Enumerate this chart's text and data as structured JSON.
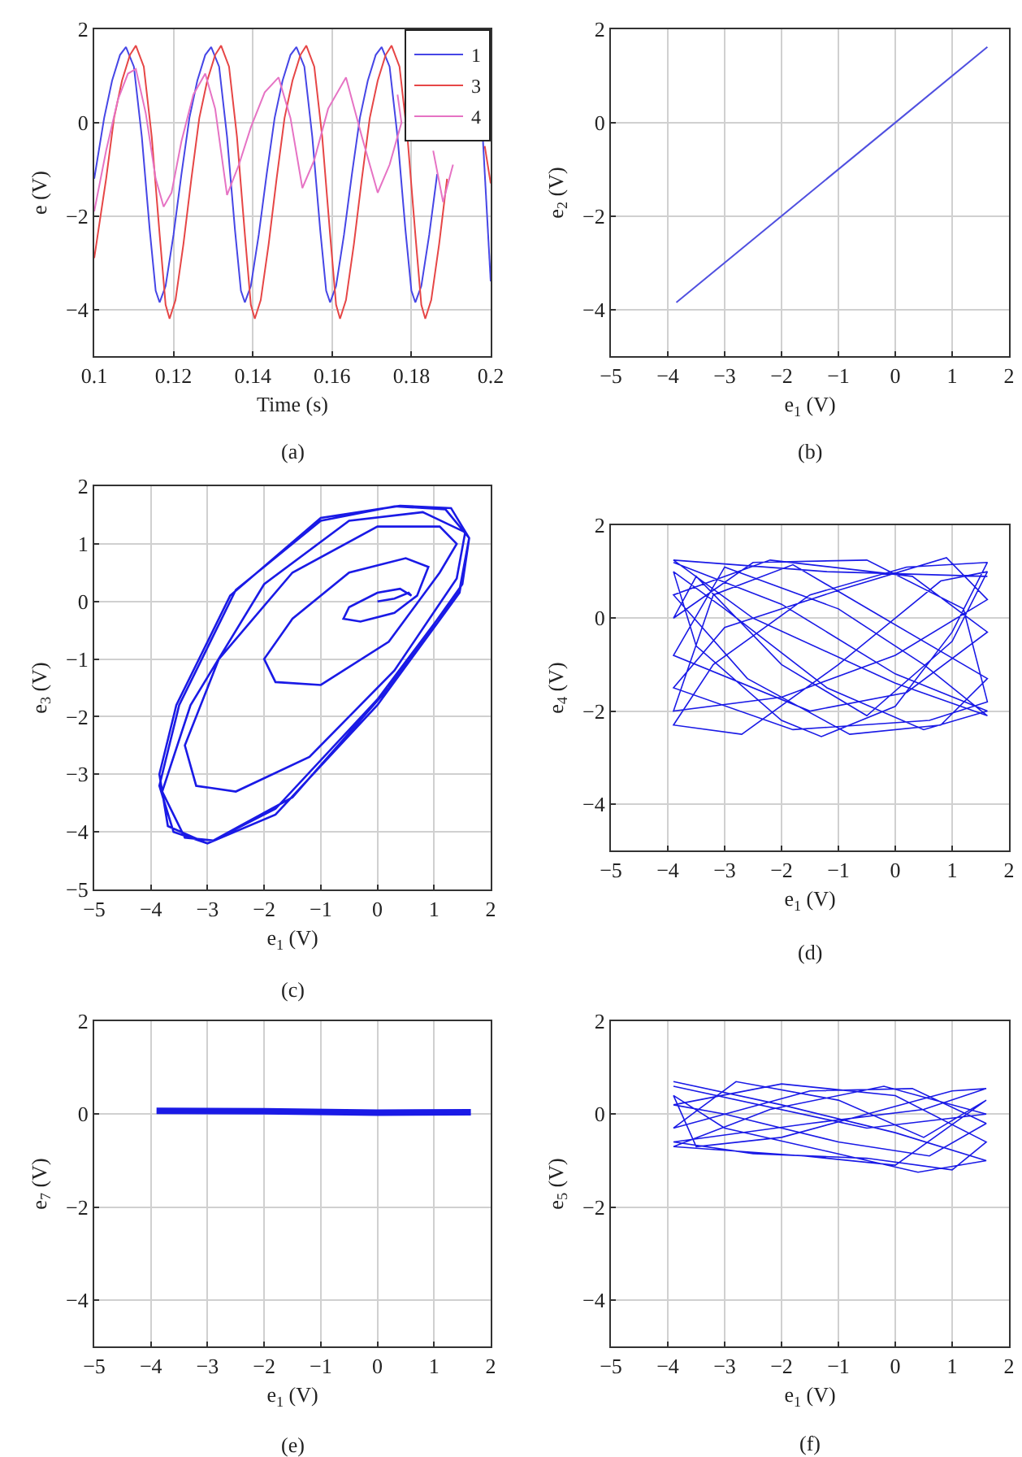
{
  "chart_data": [
    {
      "type": "line",
      "xlabel": "Time (s)",
      "ylabel": "e (V)",
      "xlim": [
        0.1,
        0.2
      ],
      "ylim": [
        -5,
        2
      ],
      "xticks": [
        0.1,
        0.12,
        0.14,
        0.16,
        0.18,
        0.2
      ],
      "yticks": [
        -4,
        -2,
        0,
        2
      ],
      "grid": true,
      "legend": "top right",
      "annotations": [
        "(a)"
      ],
      "series": [
        {
          "name": "1",
          "color": "#4646e6",
          "x": [
            0.1,
            0.1025,
            0.1045,
            0.1065,
            0.108,
            0.11,
            0.112,
            0.114,
            0.1155,
            0.1165,
            0.118,
            0.12,
            0.122,
            0.124,
            0.126,
            0.128,
            0.1295,
            0.1315,
            0.1335,
            0.1355,
            0.137,
            0.138,
            0.1395,
            0.1415,
            0.1435,
            0.1455,
            0.1475,
            0.1495,
            0.151,
            0.153,
            0.155,
            0.157,
            0.1585,
            0.1595,
            0.161,
            0.163,
            0.165,
            0.167,
            0.169,
            0.171,
            0.1725,
            0.1745,
            0.1765,
            0.1785,
            0.18,
            0.181,
            0.1825,
            0.1845,
            0.1865,
            0.1885,
            0.1905,
            0.1925,
            0.194,
            0.196,
            0.198,
            0.2
          ],
          "values": [
            -1.2,
            0.1,
            0.9,
            1.45,
            1.62,
            1.2,
            -0.3,
            -2.3,
            -3.6,
            -3.85,
            -3.5,
            -2.4,
            -1.1,
            0.1,
            0.9,
            1.45,
            1.62,
            1.2,
            -0.3,
            -2.3,
            -3.6,
            -3.85,
            -3.5,
            -2.4,
            -1.1,
            0.1,
            0.9,
            1.45,
            1.62,
            1.2,
            -0.3,
            -2.3,
            -3.6,
            -3.85,
            -3.5,
            -2.4,
            -1.1,
            0.1,
            0.9,
            1.45,
            1.62,
            1.2,
            -0.3,
            -2.3,
            -3.6,
            -3.85,
            -3.5,
            -2.4,
            -1.1,
            null,
            null,
            null,
            null,
            null,
            -0.3,
            -3.4
          ]
        },
        {
          "name": "3",
          "color": "#e64646",
          "x": [
            0.1,
            0.103,
            0.105,
            0.107,
            0.109,
            0.1105,
            0.1125,
            0.1145,
            0.1165,
            0.118,
            0.119,
            0.1205,
            0.1225,
            0.1245,
            0.1265,
            0.1285,
            0.1305,
            0.132,
            0.134,
            0.136,
            0.138,
            0.1395,
            0.1405,
            0.142,
            0.144,
            0.146,
            0.148,
            0.15,
            0.152,
            0.1535,
            0.1555,
            0.1575,
            0.1595,
            0.161,
            0.162,
            0.1635,
            0.1655,
            0.1675,
            0.1695,
            0.1715,
            0.1735,
            0.175,
            0.177,
            0.179,
            0.181,
            0.1825,
            0.1835,
            0.185,
            0.187,
            0.189,
            0.191,
            0.193,
            0.195,
            0.1965,
            0.1985,
            0.2
          ],
          "values": [
            -2.9,
            -1.2,
            0.1,
            0.9,
            1.45,
            1.65,
            1.2,
            -0.3,
            -2.4,
            -3.9,
            -4.2,
            -3.8,
            -2.6,
            -1.2,
            0.1,
            0.9,
            1.45,
            1.65,
            1.2,
            -0.3,
            -2.4,
            -3.9,
            -4.2,
            -3.8,
            -2.6,
            -1.2,
            0.1,
            0.9,
            1.45,
            1.65,
            1.2,
            -0.3,
            -2.4,
            -3.9,
            -4.2,
            -3.8,
            -2.6,
            -1.2,
            0.1,
            0.9,
            1.45,
            1.65,
            1.2,
            -0.3,
            -2.4,
            -3.9,
            -4.2,
            -3.8,
            -2.6,
            -1.2,
            null,
            null,
            null,
            null,
            -0.5,
            -1.3
          ]
        },
        {
          "name": "4",
          "color": "#e673c4",
          "x": [
            0.1,
            0.103,
            0.106,
            0.1085,
            0.1105,
            0.113,
            0.1155,
            0.1175,
            0.1195,
            0.122,
            0.125,
            0.128,
            0.1305,
            0.1335,
            0.1365,
            0.1395,
            0.143,
            0.1465,
            0.1495,
            0.1525,
            0.1555,
            0.159,
            0.1635,
            0.1675,
            0.1715,
            0.1745,
            0.1775,
            0.1765,
            0.1835,
            0.1855,
            0.188,
            0.1905
          ],
          "values": [
            -1.9,
            -0.6,
            0.5,
            1.05,
            1.15,
            0.2,
            -1.2,
            -1.8,
            -1.5,
            -0.4,
            0.6,
            1.05,
            0.3,
            -1.55,
            -0.9,
            -0.1,
            0.65,
            0.97,
            0.1,
            -1.4,
            -0.8,
            0.3,
            0.97,
            -0.3,
            -1.5,
            -0.9,
            0.0,
            0.6,
            null,
            -0.6,
            -1.7,
            -0.9
          ]
        }
      ]
    },
    {
      "type": "line",
      "xlabel": "e$_{1}$ (V)",
      "ylabel": "e$_{2}$ (V)",
      "xlim": [
        -5,
        2
      ],
      "ylim": [
        -5,
        2
      ],
      "xticks": [
        -5,
        -4,
        -3,
        -2,
        -1,
        0,
        1,
        2
      ],
      "yticks": [
        -4,
        -2,
        0,
        2
      ],
      "grid": true,
      "annotations": [
        "(b)"
      ],
      "series": [
        {
          "color": "#5050e0",
          "x": [
            -3.85,
            0,
            1.62
          ],
          "values": [
            -3.85,
            0,
            1.62
          ]
        }
      ]
    },
    {
      "type": "line",
      "xlabel": "e$_{1}$ (V)",
      "ylabel": "e$_{3}$ (V)",
      "xlim": [
        -5,
        2
      ],
      "ylim": [
        -5,
        2
      ],
      "xticks": [
        -5,
        -4,
        -3,
        -2,
        -1,
        0,
        1,
        2
      ],
      "yticks": [
        -5,
        -4,
        -3,
        -2,
        -1,
        0,
        1,
        2
      ],
      "grid": true,
      "annotations": [
        "(c)"
      ],
      "series": [
        {
          "color": "#1a1ae6",
          "x": [
            0,
            0.3,
            0.55,
            0.6,
            0.4,
            0,
            -0.5,
            -0.6,
            -0.3,
            0.3,
            0.7,
            0.9,
            0.5,
            -0.5,
            -1.5,
            -2,
            -1.8,
            -1,
            0.2,
            1.1,
            1.4,
            1.1,
            0,
            -1.5,
            -2.8,
            -3.4,
            -3.2,
            -2.5,
            -1.2,
            0.3,
            1.4,
            1.55,
            0.8,
            -0.5,
            -2,
            -3.3,
            -3.8,
            -3.4,
            -2.9,
            -1.5,
            0.2,
            1.5,
            1.62,
            1.2,
            0.3,
            -1,
            -2.5,
            -3.5,
            -3.85,
            -3.6,
            -3,
            -1.8,
            0,
            1.45,
            1.62,
            1.3,
            0.4,
            -1,
            -2.6,
            -3.55,
            -3.85,
            -3.7,
            -3,
            -1.8,
            0,
            1.45,
            1.6
          ],
          "values": [
            0,
            0.05,
            0.15,
            0.1,
            0.22,
            0.15,
            -0.1,
            -0.3,
            -0.35,
            -0.2,
            0.1,
            0.6,
            0.75,
            0.5,
            -0.3,
            -1,
            -1.4,
            -1.45,
            -0.7,
            0.5,
            1,
            1.3,
            1.3,
            0.5,
            -1,
            -2.5,
            -3.2,
            -3.3,
            -2.7,
            -1.2,
            0.4,
            1.2,
            1.55,
            1.4,
            0.3,
            -1.8,
            -3.3,
            -4.1,
            -4.15,
            -3.4,
            -1.5,
            0.3,
            1.1,
            1.6,
            1.65,
            1.4,
            0.2,
            -1.8,
            -3.2,
            -4,
            -4.2,
            -3.6,
            -1.7,
            0.2,
            1.1,
            1.62,
            1.66,
            1.45,
            0.1,
            -1.8,
            -3,
            -3.9,
            -4.2,
            -3.7,
            -1.8,
            0.15,
            1
          ]
        }
      ]
    },
    {
      "type": "line",
      "xlabel": "e$_{1}$ (V)",
      "ylabel": "e$_{4}$ (V)",
      "xlim": [
        -5,
        2
      ],
      "ylim": [
        -5,
        2
      ],
      "xticks": [
        -5,
        -4,
        -3,
        -2,
        -1,
        0,
        1,
        2
      ],
      "yticks": [
        -4,
        -2,
        0,
        2
      ],
      "grid": true,
      "annotations": [
        "(d)"
      ],
      "series": [
        {
          "color": "#1a1ae6",
          "x": [
            -3.9,
            -2,
            0,
            1.62,
            0.5,
            -1.2,
            -3,
            -3.9,
            -3.5,
            -2,
            -1.3,
            0,
            1,
            1.62,
            0.2,
            -1.5,
            -3.2,
            -3.9,
            -2.7,
            -1,
            0.8,
            1.62,
            1,
            -0.5,
            -2,
            -3.5,
            -3.9,
            -2.5,
            -0.5,
            1.2,
            1.62,
            0.6,
            -1.8,
            -3.9,
            -3,
            -1,
            0.9,
            1.62,
            0,
            -2,
            -3.9,
            -3.2,
            -1.8,
            -0.2,
            1.62,
            0.8,
            -0.8,
            -2.6,
            -3.9,
            -2.2,
            0.3,
            1.62,
            0.2,
            -1.5,
            -3.9,
            -3,
            -1,
            0.5,
            1.62,
            0,
            -2.5,
            -3.9,
            -1.2,
            1.62
          ],
          "values": [
            1.2,
            0.3,
            -1.2,
            -2,
            -2.4,
            -1.5,
            0.2,
            1,
            -0.6,
            -2.2,
            -2.55,
            -1.9,
            -0.3,
            1.2,
            1.1,
            0.5,
            -1,
            -2.3,
            -2.5,
            -1,
            0.8,
            1,
            -0.5,
            -2.1,
            -1,
            0.9,
            0,
            1.2,
            1.25,
            0.2,
            -1.8,
            -2.2,
            -2.4,
            -1.5,
            -0.2,
            0.6,
            1.3,
            0.4,
            -0.8,
            -1.7,
            -2,
            0.5,
            1.15,
            0,
            -1.3,
            -2.3,
            -2.5,
            -1.3,
            0.5,
            1.25,
            0.9,
            -0.3,
            -1.6,
            -2,
            -0.8,
            1.1,
            0.2,
            -1,
            -2.1,
            -1.4,
            0,
            1.25,
            1,
            0.9
          ]
        }
      ]
    },
    {
      "type": "line",
      "xlabel": "e$_{1}$ (V)",
      "ylabel": "e$_{7}$ (V)",
      "xlim": [
        -5,
        2
      ],
      "ylim": [
        -5,
        2
      ],
      "xticks": [
        -5,
        -4,
        -3,
        -2,
        -1,
        0,
        1,
        2
      ],
      "yticks": [
        -4,
        -2,
        0,
        2
      ],
      "grid": true,
      "annotations": [
        "(e)"
      ],
      "series": [
        {
          "color": "#1a1ae6",
          "x": [
            -3.9,
            -2,
            0,
            1.65
          ],
          "values": [
            0.07,
            0.06,
            0.03,
            0.04
          ]
        }
      ]
    },
    {
      "type": "line",
      "xlabel": "e$_{1}$ (V)",
      "ylabel": "e$_{5}$ (V)",
      "xlim": [
        -5,
        2
      ],
      "ylim": [
        -5,
        2
      ],
      "xticks": [
        -5,
        -4,
        -3,
        -2,
        -1,
        0,
        1,
        2
      ],
      "yticks": [
        -4,
        -2,
        0,
        2
      ],
      "grid": true,
      "annotations": [
        "(f)"
      ],
      "series": [
        {
          "color": "#1a1ae6",
          "x": [
            -3.9,
            -2,
            0,
            1.6,
            0.4,
            -1.2,
            -3,
            -3.9,
            -3.5,
            -2,
            -0.5,
            1,
            1.6,
            0.5,
            -1.5,
            -3.9,
            -2.5,
            -0.5,
            1,
            1.6,
            0,
            -2,
            -3.9,
            -3,
            -1,
            0.6,
            1.6,
            0.3,
            -1.5,
            -3.9,
            -2.8,
            -1,
            0.5,
            1.6,
            0,
            -1.6,
            -3.9,
            -2.2,
            -0.2,
            1.6,
            -0.5,
            -3.9
          ],
          "values": [
            0.7,
            0.2,
            -0.4,
            -1,
            -1.25,
            -0.8,
            -0.3,
            0.4,
            -0.7,
            -0.5,
            0,
            0.5,
            0.55,
            0.1,
            -0.2,
            -0.6,
            -0.85,
            -0.95,
            -1.2,
            -0.6,
            0.4,
            0.65,
            0.2,
            0,
            -0.6,
            -0.9,
            -0.2,
            0.55,
            0.5,
            -0.3,
            0.7,
            0.3,
            -0.5,
            0.3,
            -1.1,
            -0.9,
            -0.7,
            0.1,
            0.6,
            0,
            -0.3,
            0.6
          ]
        }
      ]
    }
  ]
}
